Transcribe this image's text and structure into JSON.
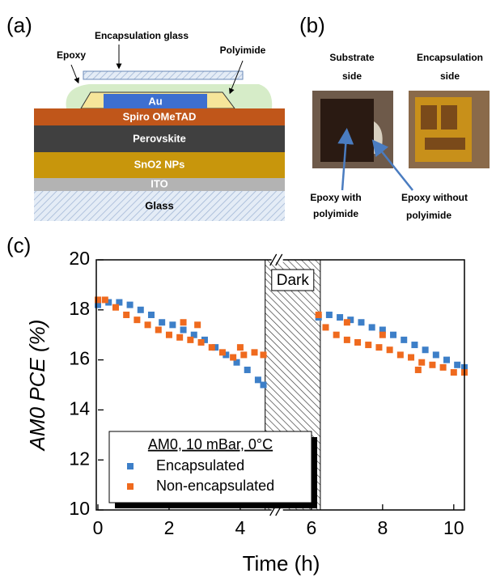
{
  "panel_a": {
    "label": "(a)",
    "layers": [
      "Au",
      "Spiro OMeTAD",
      "Perovskite",
      "SnO2 NPs",
      "ITO",
      "Glass"
    ],
    "annotations": [
      "Encapsulation glass",
      "Epoxy",
      "Polyimide"
    ]
  },
  "panel_b": {
    "label": "(b)",
    "photo_labels": [
      [
        "Substrate",
        "side"
      ],
      [
        "Encapsulation",
        "side"
      ]
    ],
    "arrow_labels": [
      [
        "Epoxy with",
        "polyimide"
      ],
      [
        "Epoxy without",
        "polyimide"
      ]
    ]
  },
  "panel_c": {
    "label": "(c)"
  },
  "chart_data": {
    "type": "scatter",
    "x_label": "Time (h)",
    "y_label": "AM0 PCE (%)",
    "xlim": [
      0,
      10.3
    ],
    "xticks": [
      0,
      2,
      4,
      6,
      8,
      10
    ],
    "ylim": [
      10,
      20
    ],
    "yticks": [
      10,
      12,
      14,
      16,
      18,
      20
    ],
    "legend_title": "AM0, 10 mBar, 0°C",
    "legend_position": "lower left",
    "shaded_region": {
      "label": "Dark",
      "x": [
        4.7,
        6.25
      ]
    },
    "series": [
      {
        "name": "Encapsulated",
        "color": "#3d7fc8",
        "x": [
          0,
          0.3,
          0.6,
          0.9,
          1.2,
          1.5,
          1.8,
          2.1,
          2.4,
          2.7,
          3.0,
          3.3,
          3.6,
          3.9,
          4.2,
          4.5,
          4.65,
          6.2,
          6.5,
          6.8,
          7.1,
          7.4,
          7.7,
          8.0,
          8.3,
          8.6,
          8.9,
          9.2,
          9.5,
          9.8,
          10.1,
          10.3
        ],
        "values": [
          18.2,
          18.3,
          18.3,
          18.2,
          18.0,
          17.8,
          17.5,
          17.4,
          17.2,
          17.0,
          16.8,
          16.5,
          16.2,
          15.9,
          15.6,
          15.2,
          15.0,
          17.7,
          17.8,
          17.7,
          17.6,
          17.5,
          17.3,
          17.2,
          17.0,
          16.8,
          16.6,
          16.4,
          16.2,
          16.0,
          15.8,
          15.7
        ]
      },
      {
        "name": "Non-encapsulated",
        "color": "#ef6a1e",
        "x": [
          0,
          0.2,
          0.5,
          0.8,
          1.1,
          1.4,
          1.7,
          2.0,
          2.3,
          2.6,
          2.9,
          3.2,
          3.5,
          3.8,
          4.1,
          4.4,
          4.65,
          2.4,
          2.8,
          4.0,
          6.2,
          6.4,
          6.7,
          7.0,
          7.3,
          7.6,
          7.9,
          8.2,
          8.5,
          8.8,
          9.1,
          9.4,
          9.7,
          10.0,
          10.3,
          7.0,
          8.0,
          9.0
        ],
        "values": [
          18.4,
          18.4,
          18.1,
          17.8,
          17.6,
          17.4,
          17.2,
          17.0,
          16.9,
          16.8,
          16.7,
          16.5,
          16.3,
          16.1,
          16.2,
          16.3,
          16.2,
          17.5,
          17.4,
          16.5,
          17.8,
          17.3,
          17.0,
          16.8,
          16.7,
          16.6,
          16.5,
          16.4,
          16.2,
          16.1,
          15.9,
          15.8,
          15.7,
          15.5,
          15.5,
          17.5,
          17.0,
          15.6
        ]
      }
    ]
  }
}
